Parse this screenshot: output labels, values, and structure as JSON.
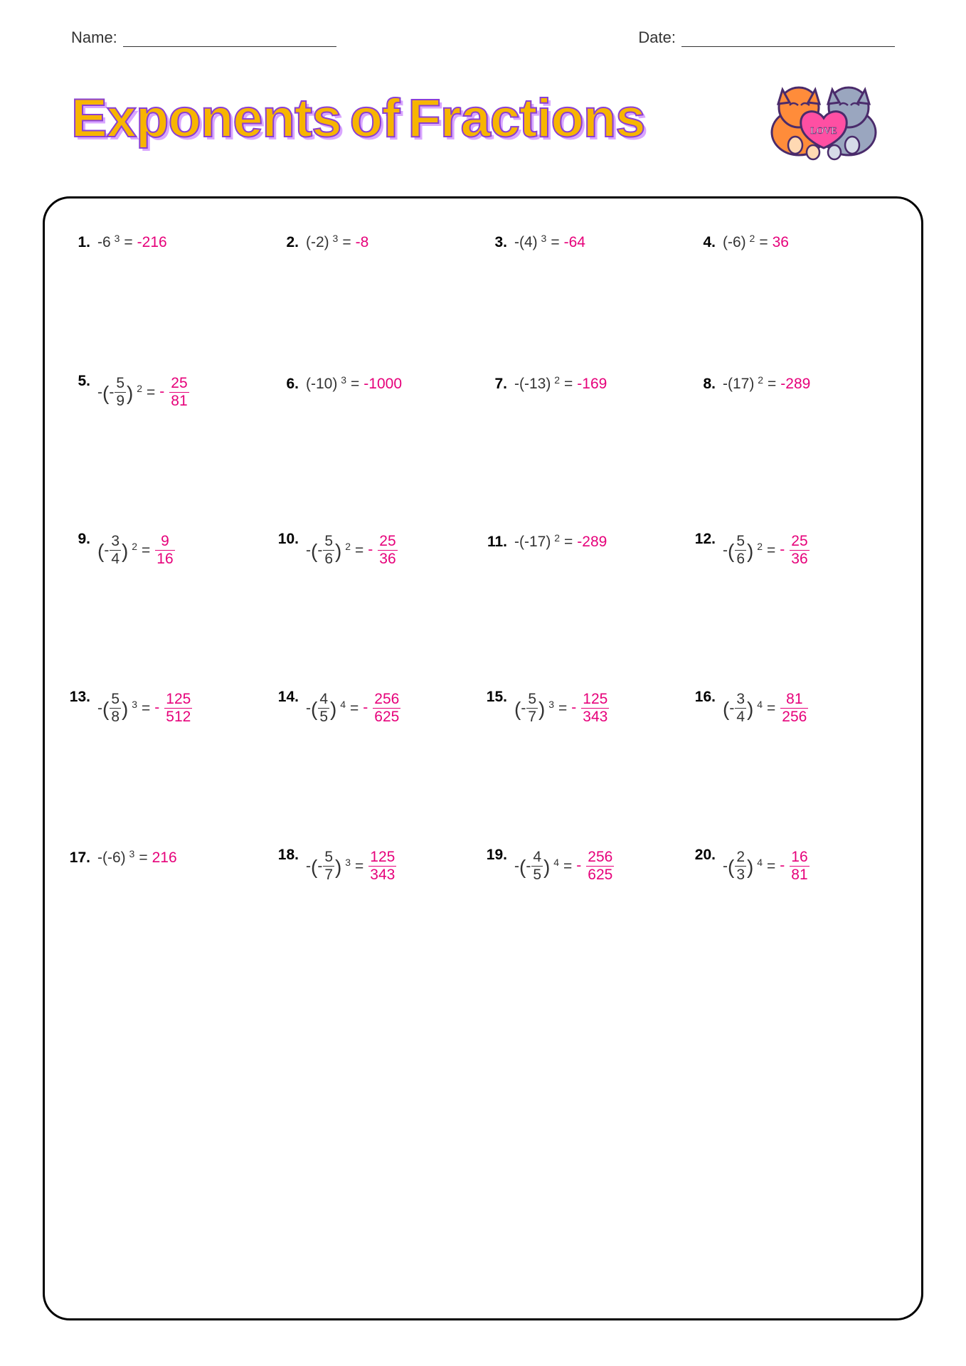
{
  "header": {
    "name_label": "Name:",
    "date_label": "Date:"
  },
  "title": "Exponents of Fractions",
  "colors": {
    "title_fill": "#f7b500",
    "title_stroke": "#8a3fd4",
    "title_shadow": "#d9a6ff",
    "answer_color": "#e6007a",
    "text_color": "#333333",
    "border_color": "#000000",
    "background": "#ffffff"
  },
  "typography": {
    "body_fontsize": 21,
    "title_fontsize": 76,
    "header_fontsize": 22
  },
  "layout": {
    "columns": 4,
    "rows": 5,
    "box_border_radius": 38,
    "box_border_width": 3.5
  },
  "problems": [
    {
      "num": "1.",
      "type": "int",
      "prefix": "",
      "base": "-6",
      "exp": "3",
      "ans_neg": "",
      "ans": "-216"
    },
    {
      "num": "2.",
      "type": "int",
      "prefix": "",
      "pl": true,
      "base": "-2",
      "exp": "3",
      "ans_neg": "",
      "ans": "-8"
    },
    {
      "num": "3.",
      "type": "int",
      "prefix": "-",
      "pl": true,
      "base": "4",
      "exp": "3",
      "ans_neg": "",
      "ans": "-64"
    },
    {
      "num": "4.",
      "type": "int",
      "prefix": "",
      "pl": true,
      "base": "-6",
      "exp": "2",
      "ans_neg": "",
      "ans": "36"
    },
    {
      "num": "5.",
      "type": "frac",
      "prefix": "-",
      "inner_neg": "-",
      "fn": "5",
      "fd": "9",
      "exp": "2",
      "ans_neg": "-",
      "ans_n": "25",
      "ans_d": "81"
    },
    {
      "num": "6.",
      "type": "int",
      "prefix": "",
      "pl": true,
      "base": "-10",
      "exp": "3",
      "ans_neg": "",
      "ans": "-1000"
    },
    {
      "num": "7.",
      "type": "int",
      "prefix": "-",
      "pl": true,
      "base": "-13",
      "exp": "2",
      "ans_neg": "",
      "ans": "-169"
    },
    {
      "num": "8.",
      "type": "int",
      "prefix": "-",
      "pl": true,
      "base": "17",
      "exp": "2",
      "ans_neg": "",
      "ans": "-289"
    },
    {
      "num": "9.",
      "type": "frac",
      "prefix": "",
      "inner_neg": "-",
      "fn": "3",
      "fd": "4",
      "exp": "2",
      "ans_neg": "",
      "ans_n": "9",
      "ans_d": "16"
    },
    {
      "num": "10.",
      "type": "frac",
      "prefix": "-",
      "inner_neg": "-",
      "fn": "5",
      "fd": "6",
      "exp": "2",
      "ans_neg": "-",
      "ans_n": "25",
      "ans_d": "36"
    },
    {
      "num": "11.",
      "type": "int",
      "prefix": "-",
      "pl": true,
      "base": "-17",
      "exp": "2",
      "ans_neg": "",
      "ans": "-289"
    },
    {
      "num": "12.",
      "type": "frac",
      "prefix": "-",
      "inner_neg": "",
      "fn": "5",
      "fd": "6",
      "exp": "2",
      "ans_neg": "-",
      "ans_n": "25",
      "ans_d": "36"
    },
    {
      "num": "13.",
      "type": "frac",
      "prefix": "-",
      "inner_neg": "",
      "fn": "5",
      "fd": "8",
      "exp": "3",
      "ans_neg": "-",
      "ans_n": "125",
      "ans_d": "512"
    },
    {
      "num": "14.",
      "type": "frac",
      "prefix": "-",
      "inner_neg": "",
      "fn": "4",
      "fd": "5",
      "exp": "4",
      "ans_neg": "-",
      "ans_n": "256",
      "ans_d": "625"
    },
    {
      "num": "15.",
      "type": "frac",
      "prefix": "",
      "inner_neg": "-",
      "fn": "5",
      "fd": "7",
      "exp": "3",
      "ans_neg": "-",
      "ans_n": "125",
      "ans_d": "343"
    },
    {
      "num": "16.",
      "type": "frac",
      "prefix": "",
      "inner_neg": "-",
      "fn": "3",
      "fd": "4",
      "exp": "4",
      "ans_neg": "",
      "ans_n": "81",
      "ans_d": "256"
    },
    {
      "num": "17.",
      "type": "int",
      "prefix": "-",
      "pl": true,
      "base": "-6",
      "exp": "3",
      "ans_neg": "",
      "ans": "216"
    },
    {
      "num": "18.",
      "type": "frac",
      "prefix": "-",
      "inner_neg": "-",
      "fn": "5",
      "fd": "7",
      "exp": "3",
      "ans_neg": "",
      "ans_n": "125",
      "ans_d": "343"
    },
    {
      "num": "19.",
      "type": "frac",
      "prefix": "-",
      "inner_neg": "-",
      "fn": "4",
      "fd": "5",
      "exp": "4",
      "ans_neg": "-",
      "ans_n": "256",
      "ans_d": "625"
    },
    {
      "num": "20.",
      "type": "frac",
      "prefix": "-",
      "inner_neg": "",
      "fn": "2",
      "fd": "3",
      "exp": "4",
      "ans_neg": "-",
      "ans_n": "16",
      "ans_d": "81"
    }
  ]
}
